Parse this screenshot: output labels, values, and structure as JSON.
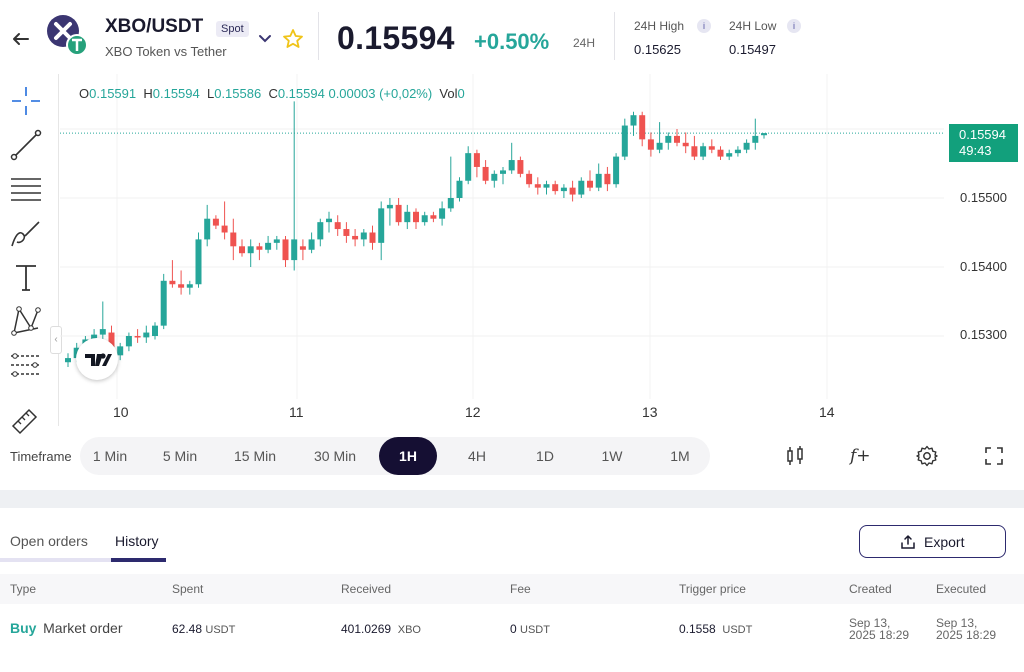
{
  "header": {
    "pair": "XBO/USDT",
    "market_type": "Spot",
    "subtitle": "XBO Token vs Tether",
    "last_price": "0.15594",
    "change_pct": "+0.50%",
    "period": "24H",
    "high_label": "24H High",
    "high_value": "0.15625",
    "low_label": "24H Low",
    "low_value": "0.15497",
    "info_glyph": "i",
    "icons": [
      "back-arrow-icon",
      "xbo-logo-icon",
      "chevron-down-icon",
      "star-icon"
    ],
    "accent_color": "#26a69a",
    "down_color": "#ef5350"
  },
  "chart": {
    "ohlc": {
      "o_label": "O",
      "o": "0.15591",
      "h_label": "H",
      "h": "0.15594",
      "l_label": "L",
      "l": "0.15586",
      "c_label": "C",
      "c": "0.15594",
      "chg": "0.00003 (+0,02%)",
      "vol_label": "Vol",
      "vol": "0"
    },
    "price_tag": "0.15594",
    "countdown": "49:43",
    "y_ticks": [
      "0.15500",
      "0.15400",
      "0.15300"
    ],
    "x_ticks": [
      "10",
      "11",
      "12",
      "13",
      "14"
    ],
    "timeframe_label": "Timeframe",
    "timeframes": [
      "1 Min",
      "5 Min",
      "15 Min",
      "30 Min",
      "1H",
      "4H",
      "1D",
      "1W",
      "1M"
    ],
    "active_timeframe": "1H",
    "tools_left": [
      "crosshair-icon",
      "trend-line-icon",
      "fib-lines-icon",
      "brush-icon",
      "text-icon",
      "pattern-icon",
      "measure-lines-icon",
      "ruler-icon"
    ],
    "tools_right": [
      "candle-type-icon",
      "indicators-icon",
      "settings-icon",
      "fullscreen-icon"
    ],
    "indicators_glyph": "f+"
  },
  "chart_data": {
    "type": "candlestick",
    "y_axis": {
      "ticks": [
        "0.15500",
        "0.15400",
        "0.15300"
      ]
    },
    "x_axis": {
      "ticks": [
        "10",
        "11",
        "12",
        "13",
        "14"
      ]
    },
    "candles": [
      [
        0.15262,
        0.15275,
        0.15255,
        0.15268
      ],
      [
        0.15268,
        0.1529,
        0.15262,
        0.15283
      ],
      [
        0.15283,
        0.153,
        0.15276,
        0.15295
      ],
      [
        0.15295,
        0.1531,
        0.15285,
        0.15302
      ],
      [
        0.15302,
        0.1535,
        0.1529,
        0.1531
      ],
      [
        0.15305,
        0.15315,
        0.15265,
        0.1527
      ],
      [
        0.15272,
        0.1529,
        0.15265,
        0.15285
      ],
      [
        0.15285,
        0.15305,
        0.15278,
        0.153
      ],
      [
        0.153,
        0.1531,
        0.1529,
        0.15298
      ],
      [
        0.15298,
        0.15315,
        0.1529,
        0.15305
      ],
      [
        0.153,
        0.1532,
        0.15295,
        0.15315
      ],
      [
        0.15315,
        0.1539,
        0.1531,
        0.1538
      ],
      [
        0.1538,
        0.1541,
        0.1537,
        0.15375
      ],
      [
        0.15375,
        0.15395,
        0.1536,
        0.1537
      ],
      [
        0.1537,
        0.1538,
        0.1536,
        0.15375
      ],
      [
        0.15375,
        0.1545,
        0.1537,
        0.1544
      ],
      [
        0.1544,
        0.1549,
        0.1543,
        0.1547
      ],
      [
        0.1547,
        0.15475,
        0.15455,
        0.1546
      ],
      [
        0.1546,
        0.15495,
        0.1544,
        0.1545
      ],
      [
        0.1545,
        0.1547,
        0.1541,
        0.1543
      ],
      [
        0.1543,
        0.1544,
        0.15415,
        0.1542
      ],
      [
        0.1542,
        0.1544,
        0.154,
        0.1543
      ],
      [
        0.1543,
        0.15435,
        0.1541,
        0.15425
      ],
      [
        0.15425,
        0.15445,
        0.1542,
        0.15435
      ],
      [
        0.15435,
        0.15445,
        0.15425,
        0.1544
      ],
      [
        0.1544,
        0.15445,
        0.154,
        0.1541
      ],
      [
        0.1541,
        0.1564,
        0.15395,
        0.1544
      ],
      [
        0.1543,
        0.1544,
        0.1541,
        0.15425
      ],
      [
        0.15425,
        0.1545,
        0.1542,
        0.1544
      ],
      [
        0.1544,
        0.1547,
        0.1543,
        0.15465
      ],
      [
        0.15465,
        0.1548,
        0.1545,
        0.1547
      ],
      [
        0.15465,
        0.15475,
        0.15445,
        0.15455
      ],
      [
        0.15455,
        0.15465,
        0.15435,
        0.15445
      ],
      [
        0.15445,
        0.15455,
        0.1543,
        0.1544
      ],
      [
        0.1544,
        0.15455,
        0.1543,
        0.1545
      ],
      [
        0.1545,
        0.1546,
        0.15425,
        0.15435
      ],
      [
        0.15435,
        0.15495,
        0.1541,
        0.15485
      ],
      [
        0.15485,
        0.155,
        0.1546,
        0.1549
      ],
      [
        0.1549,
        0.155,
        0.1546,
        0.15465
      ],
      [
        0.15465,
        0.1549,
        0.15455,
        0.1548
      ],
      [
        0.1548,
        0.15485,
        0.15455,
        0.15465
      ],
      [
        0.15465,
        0.1548,
        0.1546,
        0.15475
      ],
      [
        0.15475,
        0.1548,
        0.15465,
        0.1547
      ],
      [
        0.1547,
        0.15495,
        0.1546,
        0.15485
      ],
      [
        0.15485,
        0.1556,
        0.1548,
        0.155
      ],
      [
        0.155,
        0.1553,
        0.15495,
        0.15525
      ],
      [
        0.15525,
        0.15575,
        0.1552,
        0.15565
      ],
      [
        0.15565,
        0.1557,
        0.1553,
        0.15545
      ],
      [
        0.15545,
        0.15555,
        0.1552,
        0.15525
      ],
      [
        0.15525,
        0.1554,
        0.15515,
        0.15535
      ],
      [
        0.15535,
        0.15545,
        0.1552,
        0.1554
      ],
      [
        0.1554,
        0.1558,
        0.15535,
        0.15555
      ],
      [
        0.15555,
        0.1556,
        0.1553,
        0.15535
      ],
      [
        0.15535,
        0.1554,
        0.15515,
        0.1552
      ],
      [
        0.1552,
        0.1553,
        0.15505,
        0.15515
      ],
      [
        0.15515,
        0.15525,
        0.15505,
        0.1552
      ],
      [
        0.1552,
        0.15525,
        0.15505,
        0.1551
      ],
      [
        0.1551,
        0.1552,
        0.155,
        0.15515
      ],
      [
        0.15515,
        0.15525,
        0.15495,
        0.15505
      ],
      [
        0.15505,
        0.1553,
        0.155,
        0.15525
      ],
      [
        0.15525,
        0.1554,
        0.1551,
        0.15515
      ],
      [
        0.15515,
        0.1555,
        0.1551,
        0.15535
      ],
      [
        0.15535,
        0.15545,
        0.1551,
        0.1552
      ],
      [
        0.1552,
        0.15565,
        0.15515,
        0.1556
      ],
      [
        0.1556,
        0.15615,
        0.15555,
        0.15605
      ],
      [
        0.15605,
        0.15625,
        0.1559,
        0.1562
      ],
      [
        0.1562,
        0.15625,
        0.15575,
        0.15585
      ],
      [
        0.15585,
        0.15595,
        0.1556,
        0.1557
      ],
      [
        0.1557,
        0.1561,
        0.15565,
        0.1558
      ],
      [
        0.1558,
        0.15595,
        0.1557,
        0.1559
      ],
      [
        0.1559,
        0.156,
        0.15575,
        0.1558
      ],
      [
        0.1558,
        0.15595,
        0.15565,
        0.15575
      ],
      [
        0.15575,
        0.1559,
        0.15555,
        0.1556
      ],
      [
        0.1556,
        0.1558,
        0.15555,
        0.15575
      ],
      [
        0.15575,
        0.15585,
        0.15565,
        0.1557
      ],
      [
        0.1557,
        0.15575,
        0.15555,
        0.1556
      ],
      [
        0.1556,
        0.1557,
        0.15555,
        0.15565
      ],
      [
        0.15565,
        0.15575,
        0.1556,
        0.1557
      ],
      [
        0.1557,
        0.15585,
        0.15565,
        0.1558
      ],
      [
        0.1558,
        0.15615,
        0.1557,
        0.1559
      ],
      [
        0.15591,
        0.15594,
        0.15586,
        0.15594
      ]
    ],
    "last_price": 0.15594,
    "up_color": "#26a69a",
    "down_color": "#ef5350"
  },
  "orders": {
    "tabs": [
      "Open orders",
      "History"
    ],
    "active_tab": "History",
    "export_label": "Export",
    "columns": [
      "Type",
      "Spent",
      "Received",
      "Fee",
      "Trigger price",
      "Created",
      "Executed"
    ],
    "rows": [
      {
        "side": "Buy",
        "order_type": "Market order",
        "spent": "62.48",
        "spent_unit": "USDT",
        "received": "401.0269",
        "received_unit": "XBO",
        "fee": "0",
        "fee_unit": "USDT",
        "trigger": "0.1558",
        "trigger_unit": "USDT",
        "created_line1": "Sep 13,",
        "created_line2": "2025 18:29",
        "executed_line1": "Sep 13,",
        "executed_line2": "2025 18:29"
      }
    ]
  }
}
